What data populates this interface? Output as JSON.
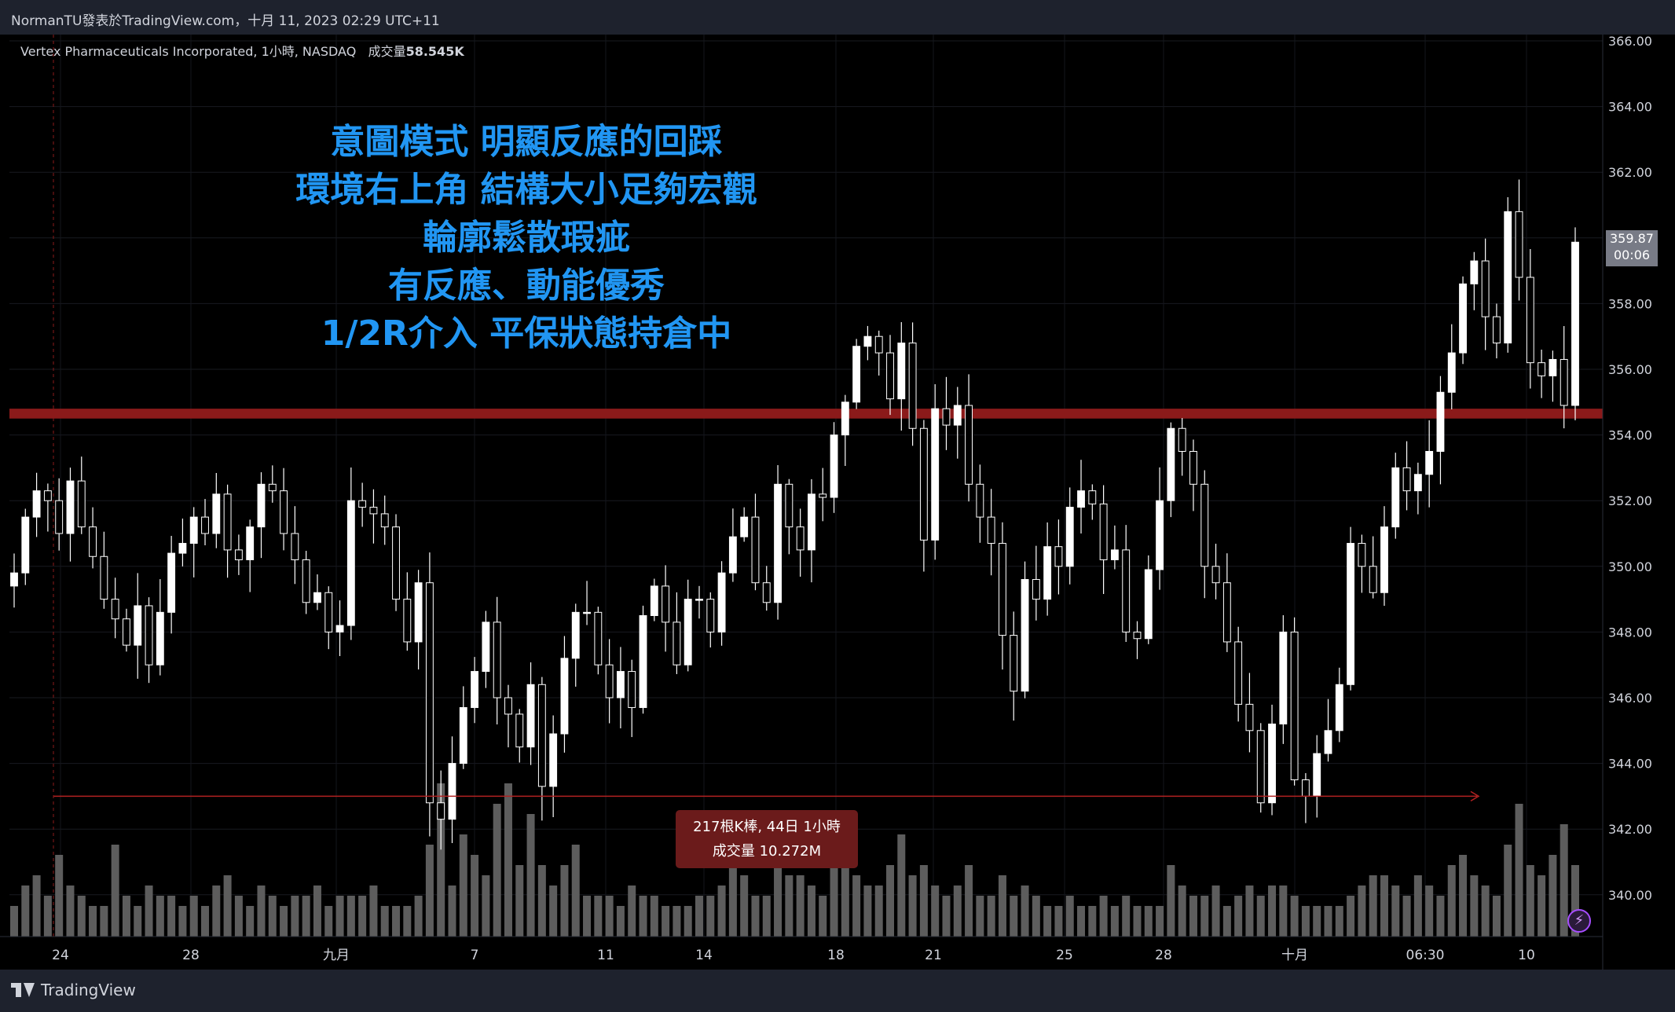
{
  "header": {
    "publish_text": "NormanTU發表於TradingView.com，十月 11, 2023 02:29 UTC+11"
  },
  "symbol": {
    "name": "Vertex Pharmaceuticals Incorporated, 1小時, NASDAQ",
    "volume_label": "成交量",
    "volume_value": "58.545K"
  },
  "annotation": {
    "lines": [
      "意圖模式 明顯反應的回踩",
      "環境右上角 結構大小足夠宏觀",
      "輪廓鬆散瑕疵",
      "有反應、動能優秀",
      "1/2R介入 平保狀態持倉中"
    ]
  },
  "price_label": {
    "price": "359.87",
    "countdown": "00:06"
  },
  "range_tooltip": {
    "line1": "217根K棒, 44日 1小時",
    "line2": "成交量 10.272M"
  },
  "footer": {
    "logo_text": "TradingView"
  },
  "colors": {
    "background": "#000000",
    "candle": "#ffffff",
    "annotation": "#2196f3",
    "zone": "#8b1a1a",
    "range_line": "#b22222",
    "volume": "#5d5d5d"
  },
  "chart_data": {
    "type": "candlestick",
    "y_ticks": [
      "366.00",
      "364.00",
      "362.00",
      "360.00",
      "358.00",
      "356.00",
      "354.00",
      "352.00",
      "350.00",
      "348.00",
      "346.00",
      "344.00",
      "342.00",
      "340.00"
    ],
    "ylim": [
      339.2,
      366.6
    ],
    "x_ticks": [
      "24",
      "28",
      "九月",
      "7",
      "11",
      "14",
      "18",
      "21",
      "25",
      "28",
      "十月",
      "06:30",
      "10"
    ],
    "resistance_zone": [
      354.5,
      354.8
    ],
    "range_line": 343.0,
    "close_path": [
      349.8,
      351.5,
      352.3,
      352.0,
      351.0,
      352.6,
      351.2,
      350.3,
      349.0,
      348.4,
      347.6,
      348.8,
      347.0,
      348.6,
      350.4,
      350.7,
      351.5,
      351.0,
      352.2,
      350.5,
      350.2,
      351.2,
      352.5,
      352.3,
      351.0,
      350.2,
      348.9,
      349.2,
      348.0,
      348.2,
      352.0,
      351.8,
      351.6,
      351.2,
      349.0,
      347.7,
      349.5,
      342.8,
      342.3,
      344.0,
      345.7,
      346.8,
      348.3,
      346.0,
      345.5,
      344.5,
      346.4,
      343.3,
      344.9,
      347.2,
      348.6,
      348.6,
      347.0,
      346.0,
      346.8,
      345.7,
      348.5,
      349.4,
      348.3,
      347.0,
      349.0,
      349.0,
      348.0,
      349.8,
      350.9,
      351.5,
      349.5,
      348.9,
      352.5,
      351.2,
      350.5,
      352.2,
      352.1,
      354.0,
      355.0,
      356.7,
      357.0,
      356.5,
      355.1,
      356.8,
      354.2,
      350.8,
      354.8,
      354.3,
      354.9,
      352.5,
      351.5,
      350.7,
      347.9,
      346.2,
      349.6,
      349.0,
      350.6,
      350.0,
      351.8,
      352.3,
      351.9,
      350.2,
      350.5,
      348.0,
      347.8,
      349.9,
      352.0,
      354.2,
      353.5,
      352.5,
      350.0,
      349.5,
      347.7,
      345.8,
      345.0,
      342.8,
      345.2,
      348.0,
      343.5,
      343.0,
      344.3,
      345.0,
      346.4,
      350.7,
      350.0,
      349.2,
      351.2,
      353.0,
      352.3,
      352.8,
      353.5,
      355.3,
      356.5,
      358.6,
      359.3,
      357.6,
      356.8,
      360.8,
      358.8,
      356.2,
      355.8,
      356.3,
      354.9,
      359.87
    ],
    "volume_path": [
      3,
      5,
      6,
      4,
      8,
      5,
      4,
      3,
      3,
      9,
      4,
      3,
      5,
      4,
      4,
      3,
      4,
      3,
      5,
      6,
      4,
      3,
      5,
      4,
      3,
      4,
      4,
      5,
      3,
      4,
      4,
      4,
      5,
      3,
      3,
      3,
      4,
      9,
      15,
      5,
      10,
      8,
      6,
      13,
      15,
      7,
      12,
      7,
      5,
      7,
      9,
      4,
      4,
      4,
      3,
      5,
      4,
      4,
      3,
      3,
      3,
      4,
      4,
      5,
      8,
      6,
      4,
      4,
      9,
      6,
      6,
      5,
      4,
      8,
      9,
      6,
      5,
      5,
      7,
      10,
      6,
      7,
      5,
      4,
      5,
      7,
      4,
      4,
      6,
      4,
      5,
      4,
      3,
      3,
      4,
      3,
      3,
      4,
      3,
      4,
      3,
      3,
      3,
      7,
      5,
      4,
      4,
      5,
      3,
      4,
      5,
      4,
      5,
      5,
      4,
      3,
      3,
      3,
      3,
      4,
      5,
      6,
      6,
      5,
      4,
      6,
      5,
      4,
      7,
      8,
      6,
      5,
      4,
      9,
      13,
      7,
      6,
      8,
      11,
      7
    ]
  }
}
